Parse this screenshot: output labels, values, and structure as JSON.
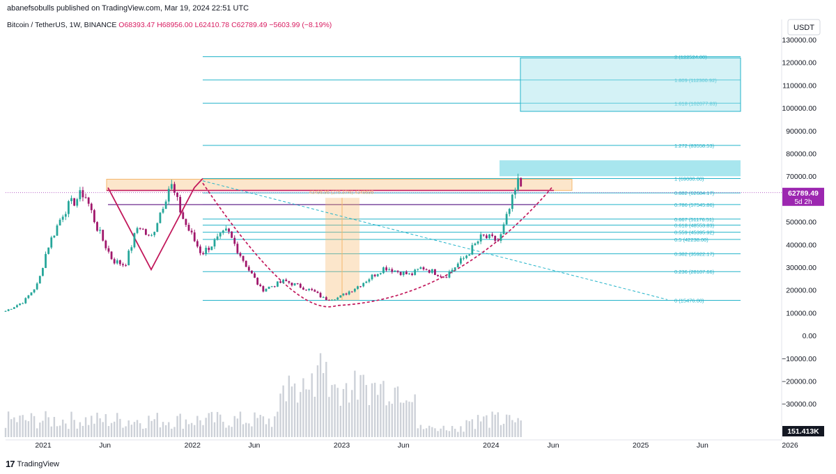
{
  "header": {
    "published": "abanefsobulls published on TradingView.com, Mar 19, 2024 22:51 UTC"
  },
  "symbol": {
    "name": "Bitcoin / TetherUS, 1W, BINANCE",
    "open": "O68393.47",
    "high": "H68956.00",
    "low": "L62410.78",
    "close": "C62789.49",
    "change": "−5603.99 (−8.19%)"
  },
  "currency_button": "USDT",
  "footer": {
    "brand": "TradingView",
    "logo_glyph": "17"
  },
  "colors": {
    "fib": "#22b3c9",
    "zone": "#9fe3ec",
    "orange": "#f5b76b",
    "magenta": "#c2185b",
    "price_tag": "#9c27b0",
    "candle_up": "#26a69a",
    "candle_down": "#a0176b",
    "volume": "#c8ccd4"
  },
  "chart_data": {
    "type": "candlestick",
    "y_axis": {
      "range": [
        -35000,
        140000
      ],
      "ticks": [
        "130000.00",
        "120000.00",
        "110000.00",
        "100000.00",
        "90000.00",
        "80000.00",
        "70000.00",
        "60000.00",
        "50000.00",
        "40000.00",
        "30000.00",
        "20000.00",
        "10000.00",
        "0.00",
        "−10000.00",
        "−20000.00",
        "−30000.00"
      ]
    },
    "x_axis": {
      "ticks": [
        {
          "label": "2021",
          "date": "2021-01-01"
        },
        {
          "label": "Jun",
          "date": "2021-06-01"
        },
        {
          "label": "2022",
          "date": "2022-01-01"
        },
        {
          "label": "Jun",
          "date": "2022-06-01"
        },
        {
          "label": "2023",
          "date": "2023-01-01"
        },
        {
          "label": "Jun",
          "date": "2023-06-01"
        },
        {
          "label": "2024",
          "date": "2024-01-01"
        },
        {
          "label": "Jun",
          "date": "2024-06-01"
        },
        {
          "label": "2025",
          "date": "2025-01-01"
        },
        {
          "label": "Jun",
          "date": "2025-06-01"
        },
        {
          "label": "2026",
          "date": "2026-01-01"
        }
      ]
    },
    "price_tag": {
      "value": "62789.49",
      "countdown": "5d 2h"
    },
    "volume_tag": "151.413K",
    "fib_levels": [
      {
        "label": "2 (122524.00)",
        "value": 122524
      },
      {
        "label": "1.809 (112300.92)",
        "value": 112300.92
      },
      {
        "label": "1.618 (102077.83)",
        "value": 102077.83
      },
      {
        "label": "1.272 (83558.53)",
        "value": 83558.53
      },
      {
        "label": "1 (69000.00)",
        "value": 69000
      },
      {
        "label": "0.882 (62684.17)",
        "value": 62684.17
      },
      {
        "label": "0.786 (57545.86)",
        "value": 57545.86
      },
      {
        "label": "0.667 (51176.51)",
        "value": 51176.51
      },
      {
        "label": "0.618 (48553.83)",
        "value": 48553.83
      },
      {
        "label": "0.559 (45395.92)",
        "value": 45395.92
      },
      {
        "label": "0.5 (42238.00)",
        "value": 42238
      },
      {
        "label": "0.382 (35922.17)",
        "value": 35922.17
      },
      {
        "label": "0.236 (28107.66)",
        "value": 28107.66
      },
      {
        "label": "0 (15476.00)",
        "value": 15476
      }
    ],
    "measure_label": "43496.95 (275.37%) 4349695",
    "anchors": [
      {
        "date": "2020-10-01",
        "price": 10800
      },
      {
        "date": "2020-11-15",
        "price": 15000
      },
      {
        "date": "2020-12-20",
        "price": 23000
      },
      {
        "date": "2021-01-10",
        "price": 38000
      },
      {
        "date": "2021-02-21",
        "price": 55000
      },
      {
        "date": "2021-04-11",
        "price": 63000
      },
      {
        "date": "2021-05-16",
        "price": 46000
      },
      {
        "date": "2021-06-20",
        "price": 33000
      },
      {
        "date": "2021-07-20",
        "price": 31000
      },
      {
        "date": "2021-08-22",
        "price": 49000
      },
      {
        "date": "2021-09-20",
        "price": 42000
      },
      {
        "date": "2021-11-08",
        "price": 67000
      },
      {
        "date": "2021-12-12",
        "price": 50000
      },
      {
        "date": "2022-01-23",
        "price": 36000
      },
      {
        "date": "2022-03-27",
        "price": 46000
      },
      {
        "date": "2022-05-15",
        "price": 30000
      },
      {
        "date": "2022-06-19",
        "price": 20000
      },
      {
        "date": "2022-08-14",
        "price": 24000
      },
      {
        "date": "2022-10-23",
        "price": 19500
      },
      {
        "date": "2022-11-20",
        "price": 16000
      },
      {
        "date": "2022-12-25",
        "price": 16700
      },
      {
        "date": "2023-02-12",
        "price": 22000
      },
      {
        "date": "2023-04-16",
        "price": 30000
      },
      {
        "date": "2023-06-18",
        "price": 26500
      },
      {
        "date": "2023-07-16",
        "price": 30000
      },
      {
        "date": "2023-09-10",
        "price": 25900
      },
      {
        "date": "2023-10-29",
        "price": 34500
      },
      {
        "date": "2023-12-10",
        "price": 43500
      },
      {
        "date": "2024-01-21",
        "price": 41500
      },
      {
        "date": "2024-02-25",
        "price": 61000
      },
      {
        "date": "2024-03-10",
        "price": 69000
      },
      {
        "date": "2024-03-18",
        "price": 62789
      }
    ],
    "annotations": {
      "resistance_top": 69000,
      "resistance_bottom": 65000,
      "neckline": 57545.86,
      "target_zone": [
        70000,
        77000
      ],
      "extension_zone": [
        98500,
        122000
      ],
      "cup_bottom": {
        "date": "2022-12-20",
        "price": 13200
      }
    }
  }
}
